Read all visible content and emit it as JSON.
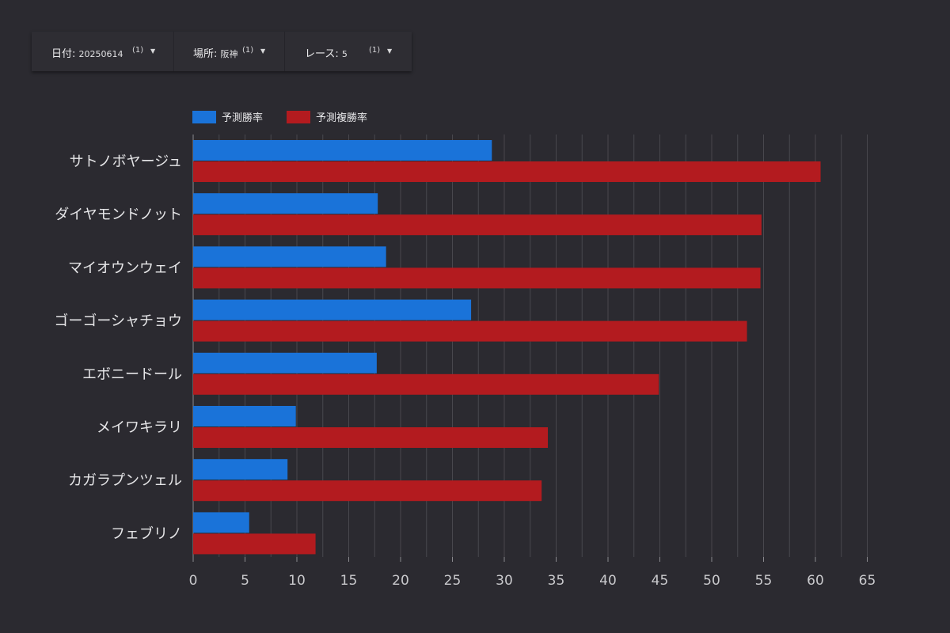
{
  "filters": {
    "date": {
      "label": "日付",
      "value": "20250614",
      "count": "(1)"
    },
    "venue": {
      "label": "場所",
      "value": "阪神",
      "count": "(1)"
    },
    "race": {
      "label": "レース",
      "value": "5",
      "count": "(1)"
    }
  },
  "colors": {
    "win": "#1a73d9",
    "place": "#b31b1f",
    "background": "#2b2a30",
    "grid": "#48474d"
  },
  "chart_data": {
    "type": "bar",
    "orientation": "horizontal",
    "categories": [
      "サトノボヤージュ",
      "ダイヤモンドノット",
      "マイオウンウェイ",
      "ゴーゴーシャチョウ",
      "エボニードール",
      "メイワキラリ",
      "カガラプンツェル",
      "フェブリノ"
    ],
    "series": [
      {
        "name": "予測勝率",
        "color": "#1a73d9",
        "values": [
          28.8,
          17.8,
          18.6,
          26.8,
          17.7,
          9.9,
          9.1,
          5.4
        ]
      },
      {
        "name": "予測複勝率",
        "color": "#b31b1f",
        "values": [
          60.5,
          54.8,
          54.7,
          53.4,
          44.9,
          34.2,
          33.6,
          11.8
        ]
      }
    ],
    "x_ticks": [
      0,
      5,
      10,
      15,
      20,
      25,
      30,
      35,
      40,
      45,
      50,
      55,
      60,
      65
    ],
    "xlim": [
      0,
      65
    ],
    "grid": true,
    "legend": "top-left"
  }
}
